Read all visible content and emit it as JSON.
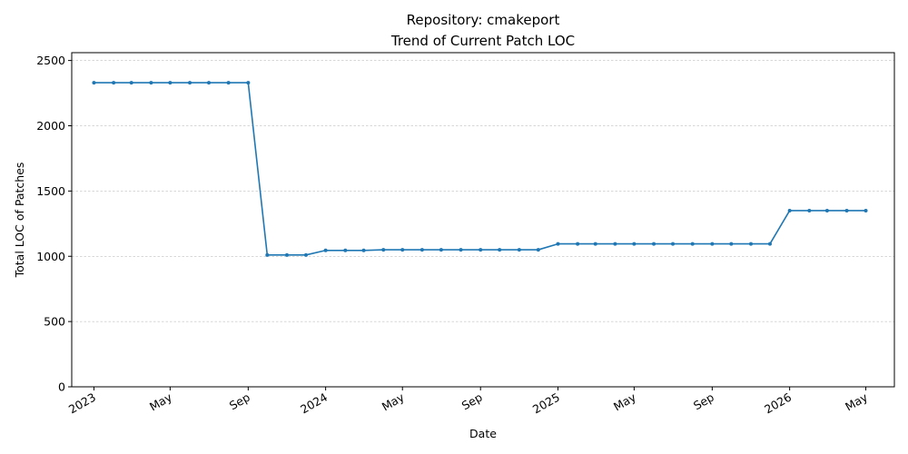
{
  "chart_data": {
    "type": "line",
    "title": "Repository: cmakeport",
    "subtitle": "Trend of Current Patch LOC",
    "xlabel": "Date",
    "ylabel": "Total LOC of Patches",
    "ylim": [
      0,
      2560
    ],
    "xlim": [
      "2022-11-27",
      "2026-06-15"
    ],
    "yticks": [
      0,
      500,
      1000,
      1500,
      2000,
      2500
    ],
    "grid": "y-dashed",
    "line_color": "#1f77b4",
    "xticks": [
      {
        "date": "2023-01-01",
        "label": "2023"
      },
      {
        "date": "2023-05-01",
        "label": "May"
      },
      {
        "date": "2023-09-01",
        "label": "Sep"
      },
      {
        "date": "2024-01-01",
        "label": "2024"
      },
      {
        "date": "2024-05-01",
        "label": "May"
      },
      {
        "date": "2024-09-01",
        "label": "Sep"
      },
      {
        "date": "2025-01-01",
        "label": "2025"
      },
      {
        "date": "2025-05-01",
        "label": "May"
      },
      {
        "date": "2025-09-01",
        "label": "Sep"
      },
      {
        "date": "2026-01-01",
        "label": "2026"
      },
      {
        "date": "2026-05-01",
        "label": "May"
      }
    ],
    "series": [
      {
        "x": [
          "2023-01-01",
          "2023-02-01",
          "2023-03-01",
          "2023-04-01",
          "2023-05-01",
          "2023-06-01",
          "2023-07-01",
          "2023-08-01",
          "2023-09-01",
          "2023-10-01",
          "2023-11-01",
          "2023-12-01",
          "2024-01-01",
          "2024-02-01",
          "2024-03-01",
          "2024-04-01",
          "2024-05-01",
          "2024-06-01",
          "2024-07-01",
          "2024-08-01",
          "2024-09-01",
          "2024-10-01",
          "2024-11-01",
          "2024-12-01",
          "2025-01-01",
          "2025-02-01",
          "2025-03-01",
          "2025-04-01",
          "2025-05-01",
          "2025-06-01",
          "2025-07-01",
          "2025-08-01",
          "2025-09-01",
          "2025-10-01",
          "2025-11-01",
          "2025-12-01",
          "2026-01-01",
          "2026-02-01",
          "2026-03-01",
          "2026-04-01",
          "2026-05-01"
        ],
        "values": [
          2330,
          2330,
          2330,
          2330,
          2330,
          2330,
          2330,
          2330,
          2330,
          1010,
          1010,
          1010,
          1045,
          1045,
          1045,
          1050,
          1050,
          1050,
          1050,
          1050,
          1050,
          1050,
          1050,
          1050,
          1095,
          1095,
          1095,
          1095,
          1095,
          1095,
          1095,
          1095,
          1095,
          1095,
          1095,
          1095,
          1350,
          1350,
          1350,
          1350,
          1350
        ]
      }
    ]
  }
}
